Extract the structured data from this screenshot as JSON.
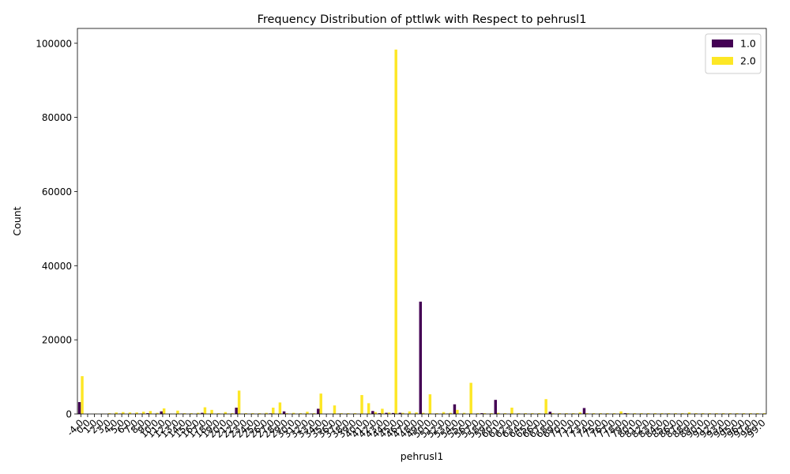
{
  "chart_data": {
    "type": "bar",
    "title": "Frequency Distribution of pttlwk with Respect to pehrusl1",
    "xlabel": "pehrusl1",
    "ylabel": "Count",
    "ylim": [
      0,
      104000
    ],
    "yticks": [
      0,
      20000,
      40000,
      60000,
      80000,
      100000
    ],
    "grid": false,
    "legend_position": "top-right",
    "categories": [
      "-4.0",
      "0.0",
      "1.0",
      "2.0",
      "3.0",
      "4.0",
      "5.0",
      "6.0",
      "7.0",
      "8.0",
      "9.0",
      "10.0",
      "11.0",
      "12.0",
      "13.0",
      "14.0",
      "15.0",
      "16.0",
      "17.0",
      "18.0",
      "19.0",
      "20.0",
      "21.0",
      "22.0",
      "23.0",
      "24.0",
      "25.0",
      "26.0",
      "27.0",
      "28.0",
      "29.0",
      "30.0",
      "31.0",
      "32.0",
      "33.0",
      "34.0",
      "35.0",
      "36.0",
      "37.0",
      "38.0",
      "39.0",
      "40.0",
      "41.0",
      "42.0",
      "43.0",
      "44.0",
      "45.0",
      "46.0",
      "47.0",
      "48.0",
      "49.0",
      "50.0",
      "51.0",
      "52.0",
      "53.0",
      "54.0",
      "55.0",
      "56.0",
      "57.0",
      "58.0",
      "59.0",
      "60.0",
      "61.0",
      "62.0",
      "63.0",
      "64.0",
      "65.0",
      "66.0",
      "67.0",
      "68.0",
      "69.0",
      "70.0",
      "71.0",
      "72.0",
      "73.0",
      "74.0",
      "75.0",
      "76.0",
      "77.0",
      "78.0",
      "79.0",
      "80.0",
      "81.0",
      "82.0",
      "83.0",
      "84.0",
      "85.0",
      "86.0",
      "87.0",
      "88.0",
      "89.0",
      "90.0",
      "91.0",
      "92.0",
      "93.0",
      "94.0",
      "95.0",
      "96.0",
      "97.0",
      "98.0",
      "99.0"
    ],
    "series": [
      {
        "name": "1.0",
        "color": "#440154",
        "values": [
          3200,
          0,
          0,
          0,
          0,
          0,
          100,
          0,
          50,
          100,
          200,
          0,
          700,
          0,
          0,
          100,
          0,
          0,
          300,
          0,
          0,
          0,
          0,
          1700,
          0,
          0,
          0,
          0,
          150,
          0,
          700,
          0,
          0,
          0,
          100,
          1400,
          0,
          0,
          100,
          0,
          0,
          0,
          0,
          800,
          200,
          300,
          250,
          300,
          0,
          0,
          30300,
          0,
          0,
          0,
          100,
          2600,
          0,
          0,
          0,
          200,
          0,
          3800,
          0,
          0,
          0,
          0,
          0,
          0,
          0,
          600,
          0,
          0,
          0,
          0,
          1600,
          0,
          0,
          0,
          0,
          0,
          200,
          0,
          0,
          0,
          0,
          0,
          100,
          0,
          0,
          0,
          0,
          0,
          0,
          0,
          0,
          0,
          0,
          0,
          0,
          0,
          0
        ]
      },
      {
        "name": "2.0",
        "color": "#fde725",
        "values": [
          10200,
          0,
          100,
          100,
          200,
          400,
          500,
          400,
          400,
          600,
          800,
          300,
          1500,
          100,
          900,
          200,
          200,
          300,
          1800,
          1100,
          200,
          500,
          200,
          6300,
          200,
          200,
          200,
          300,
          1700,
          3100,
          200,
          300,
          200,
          600,
          200,
          5500,
          100,
          2300,
          200,
          200,
          200,
          5100,
          2900,
          500,
          1400,
          400,
          98300,
          300,
          700,
          400,
          300,
          5300,
          200,
          500,
          300,
          1100,
          300,
          8400,
          200,
          200,
          200,
          300,
          200,
          1700,
          200,
          200,
          200,
          200,
          4000,
          200,
          200,
          200,
          200,
          400,
          200,
          200,
          200,
          200,
          200,
          700,
          200,
          200,
          200,
          200,
          200,
          200,
          200,
          200,
          200,
          400,
          200,
          200,
          200,
          200,
          200,
          200,
          200,
          200,
          200,
          200,
          200
        ]
      }
    ]
  }
}
